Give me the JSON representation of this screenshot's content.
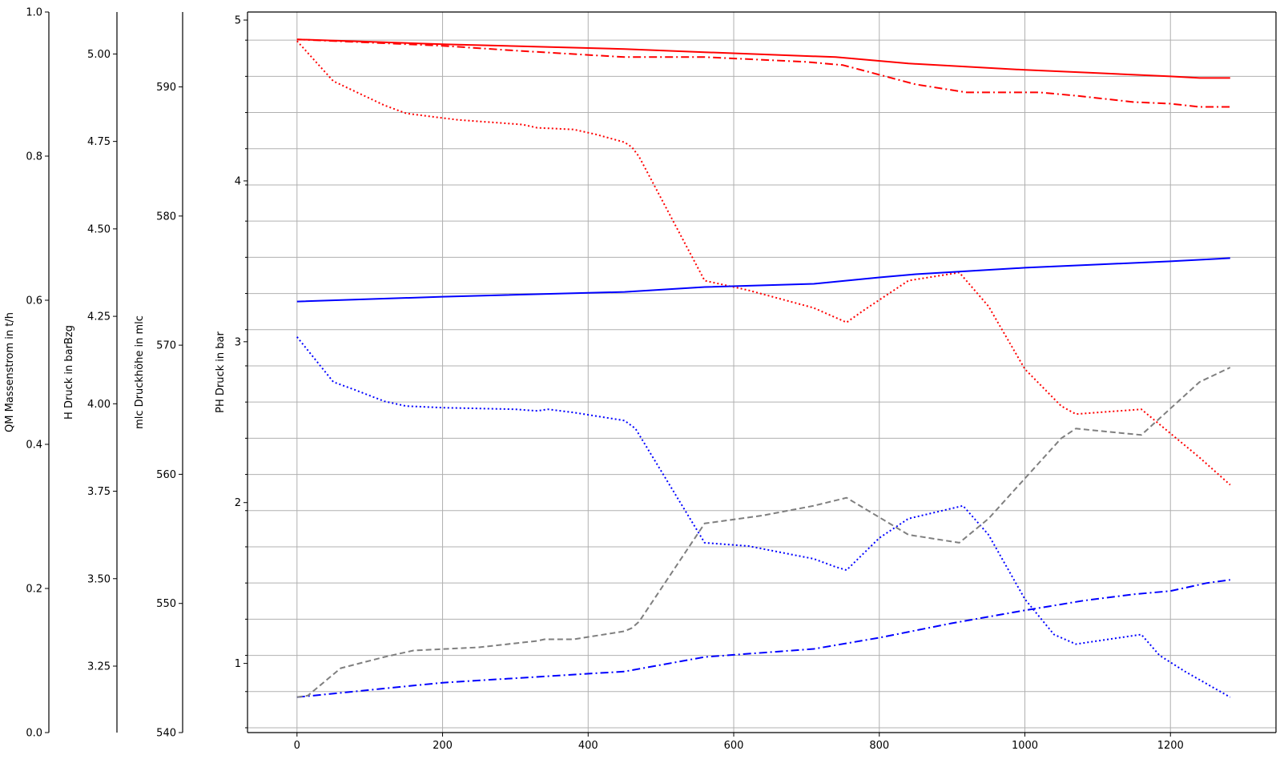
{
  "chart_data": {
    "type": "line",
    "title": "",
    "xlabel": "",
    "x_ticks": [
      0,
      200,
      400,
      600,
      800,
      1000,
      1200
    ],
    "xlim": [
      -68,
      1345
    ],
    "grid": true,
    "legend": "none",
    "axes": [
      {
        "id": "ph",
        "label": "PH Druck in bar",
        "ylim": [
          0.57,
          5.05
        ],
        "ticks": [
          1,
          2,
          3,
          4,
          5
        ],
        "tick_labels": [
          "1",
          "2",
          "3",
          "4",
          "5"
        ],
        "minor_ticks": true
      },
      {
        "id": "mlc",
        "label": "mlc Druckhöhe in mlc",
        "ylim": [
          540,
          595.8
        ],
        "ticks": [
          540,
          550,
          560,
          570,
          580,
          590
        ],
        "tick_labels": [
          "540",
          "550",
          "560",
          "570",
          "580",
          "590"
        ]
      },
      {
        "id": "h",
        "label": "H Druck in barBzg",
        "ylim": [
          3.06,
          5.12
        ],
        "ticks": [
          3.25,
          3.5,
          3.75,
          4.0,
          4.25,
          4.5,
          4.75,
          5.0
        ],
        "tick_labels": [
          "3.25",
          "3.50",
          "3.75",
          "4.00",
          "4.25",
          "4.50",
          "4.75",
          "5.00"
        ]
      },
      {
        "id": "qm",
        "label": "QM Massenstrom in t/h",
        "ylim": [
          0,
          1
        ],
        "ticks": [
          0,
          0.2,
          0.4,
          0.6,
          0.8,
          1.0
        ],
        "tick_labels": [
          "0.0",
          "0.2",
          "0.4",
          "0.6",
          "0.8",
          "1.0"
        ]
      }
    ],
    "series": [
      {
        "name": "red solid",
        "color": "#ff0000",
        "dash": "solid",
        "x": [
          0,
          200,
          450,
          560,
          740,
          840,
          1000,
          1100,
          1200,
          1240,
          1282
        ],
        "y": [
          4.88,
          4.85,
          4.82,
          4.8,
          4.77,
          4.73,
          4.69,
          4.67,
          4.65,
          4.64,
          4.64
        ]
      },
      {
        "name": "red dashdot",
        "color": "#ff0000",
        "dash": "dashdot",
        "x": [
          0,
          150,
          200,
          300,
          450,
          560,
          700,
          750,
          850,
          920,
          950,
          1020,
          1070,
          1150,
          1200,
          1240,
          1282
        ],
        "y": [
          4.88,
          4.85,
          4.84,
          4.81,
          4.77,
          4.77,
          4.74,
          4.72,
          4.6,
          4.55,
          4.55,
          4.55,
          4.53,
          4.49,
          4.48,
          4.46,
          4.46
        ]
      },
      {
        "name": "red dotted",
        "color": "#ff0000",
        "dash": "dotted",
        "x": [
          0,
          50,
          120,
          150,
          220,
          310,
          330,
          380,
          410,
          450,
          460,
          470,
          560,
          620,
          710,
          735,
          755,
          780,
          840,
          910,
          950,
          1000,
          1050,
          1070,
          1160,
          1200,
          1240,
          1282
        ],
        "y": [
          4.87,
          4.62,
          4.47,
          4.42,
          4.38,
          4.35,
          4.33,
          4.32,
          4.29,
          4.24,
          4.21,
          4.15,
          3.38,
          3.32,
          3.21,
          3.16,
          3.12,
          3.2,
          3.38,
          3.43,
          3.22,
          2.83,
          2.6,
          2.55,
          2.58,
          2.43,
          2.28,
          2.11
        ]
      },
      {
        "name": "blue solid",
        "color": "#0000ff",
        "dash": "solid",
        "x": [
          0,
          200,
          450,
          560,
          710,
          800,
          850,
          1000,
          1100,
          1200,
          1282
        ],
        "y": [
          3.25,
          3.28,
          3.31,
          3.34,
          3.36,
          3.4,
          3.42,
          3.46,
          3.48,
          3.5,
          3.52
        ]
      },
      {
        "name": "blue dashdot",
        "color": "#0000ff",
        "dash": "dashdot",
        "x": [
          0,
          200,
          450,
          560,
          710,
          800,
          900,
          1000,
          1080,
          1150,
          1200,
          1250,
          1282
        ],
        "y": [
          0.79,
          0.88,
          0.95,
          1.04,
          1.09,
          1.16,
          1.25,
          1.33,
          1.39,
          1.43,
          1.45,
          1.5,
          1.52
        ]
      },
      {
        "name": "blue dotted",
        "color": "#0000ff",
        "dash": "dotted",
        "x": [
          0,
          50,
          80,
          120,
          150,
          200,
          300,
          330,
          345,
          380,
          450,
          465,
          560,
          620,
          710,
          740,
          755,
          800,
          840,
          915,
          950,
          1000,
          1040,
          1070,
          1160,
          1185,
          1220,
          1282
        ],
        "y": [
          3.03,
          2.75,
          2.7,
          2.63,
          2.6,
          2.59,
          2.58,
          2.57,
          2.58,
          2.56,
          2.51,
          2.46,
          1.75,
          1.73,
          1.65,
          1.6,
          1.58,
          1.78,
          1.9,
          1.98,
          1.8,
          1.4,
          1.18,
          1.12,
          1.18,
          1.05,
          0.95,
          0.79
        ]
      },
      {
        "name": "grey dashed",
        "color": "#7f7f7f",
        "dash": "dashed",
        "x": [
          0,
          15,
          60,
          120,
          160,
          250,
          330,
          340,
          380,
          450,
          460,
          470,
          560,
          640,
          710,
          755,
          840,
          910,
          950,
          1020,
          1050,
          1070,
          1160,
          1240,
          1282
        ],
        "y": [
          0.79,
          0.8,
          0.97,
          1.04,
          1.08,
          1.1,
          1.14,
          1.15,
          1.15,
          1.2,
          1.22,
          1.26,
          1.87,
          1.92,
          1.98,
          2.03,
          1.8,
          1.75,
          1.9,
          2.25,
          2.4,
          2.46,
          2.42,
          2.75,
          2.84
        ]
      }
    ]
  }
}
